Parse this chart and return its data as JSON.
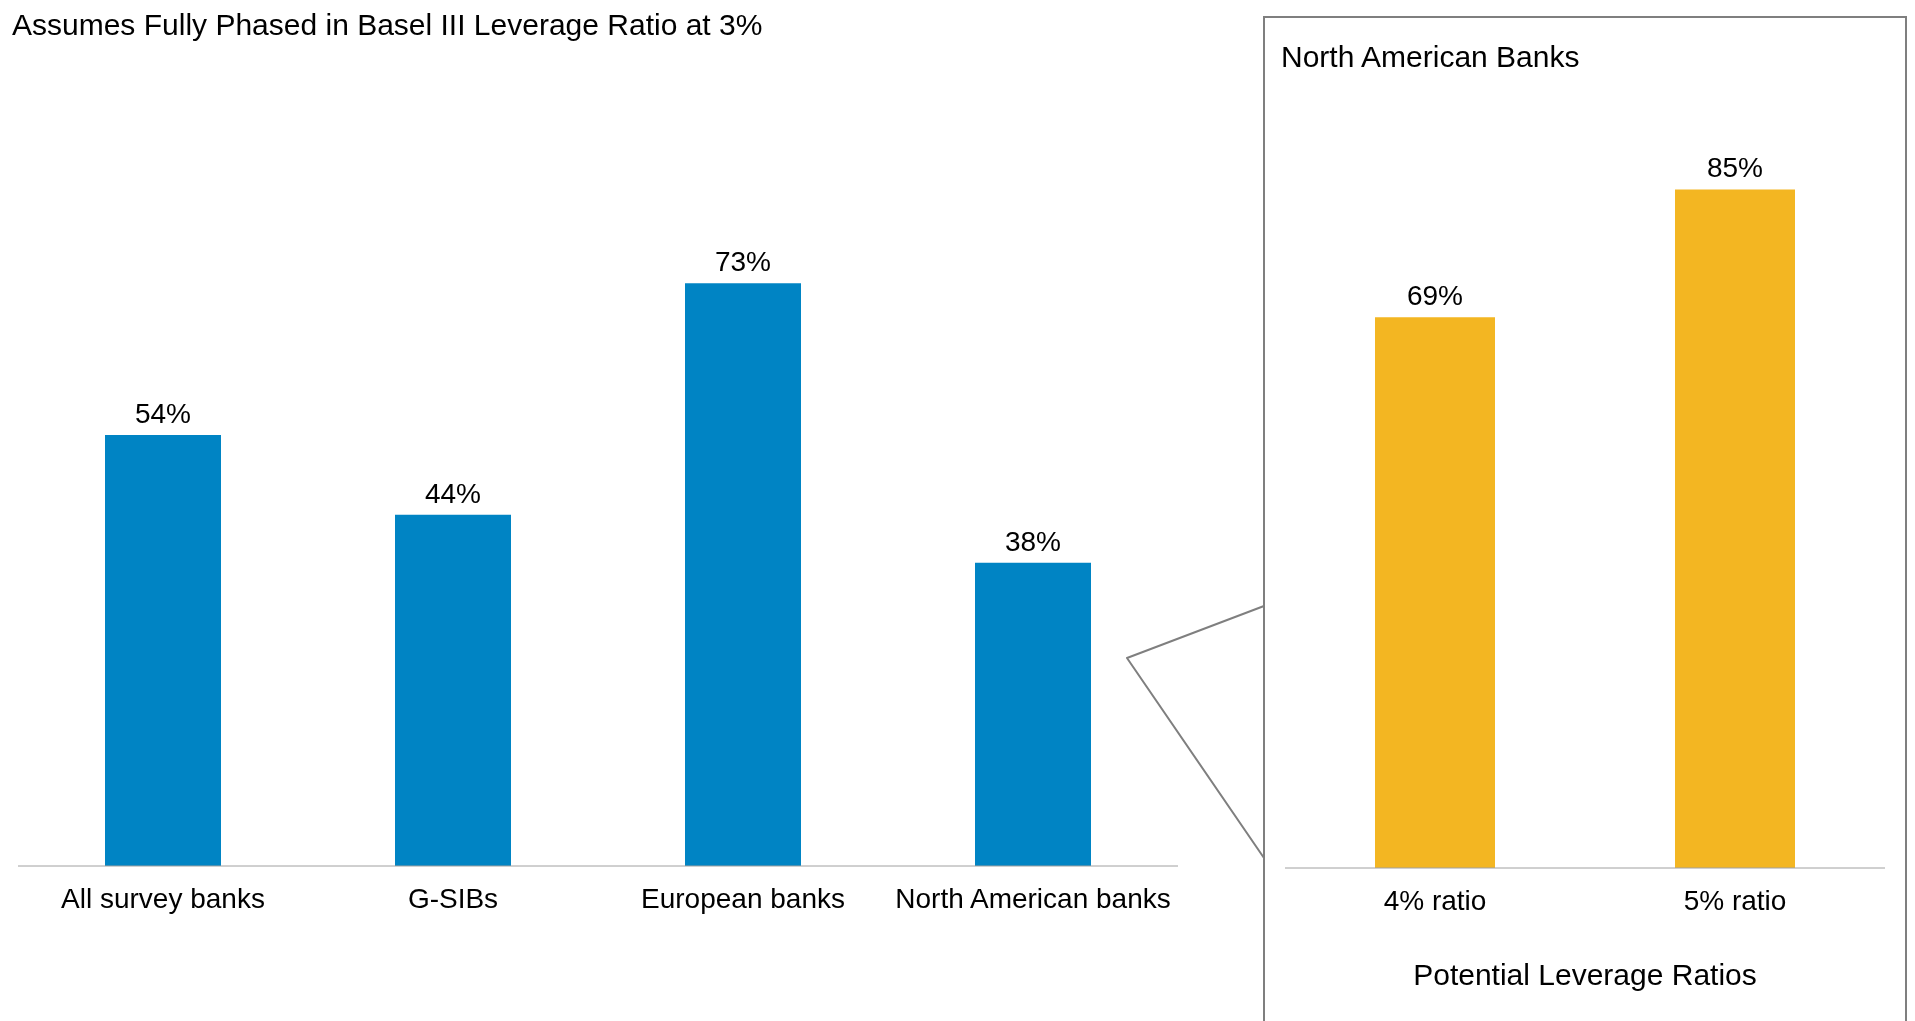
{
  "chart_data": [
    {
      "type": "bar",
      "title": "Assumes Fully Phased in Basel III Leverage Ratio at 3%",
      "categories": [
        "All survey banks",
        "G-SIBs",
        "European banks",
        "North American banks"
      ],
      "values": [
        54,
        44,
        73,
        38
      ],
      "value_labels": [
        "54%",
        "44%",
        "73%",
        "38%"
      ],
      "color": "#0084c4"
    },
    {
      "type": "bar",
      "title": "North American Banks",
      "xlabel": "Potential Leverage Ratios",
      "categories": [
        "4% ratio",
        "5% ratio"
      ],
      "values": [
        69,
        85
      ],
      "value_labels": [
        "69%",
        "85%"
      ],
      "color": "#f3b622"
    }
  ]
}
